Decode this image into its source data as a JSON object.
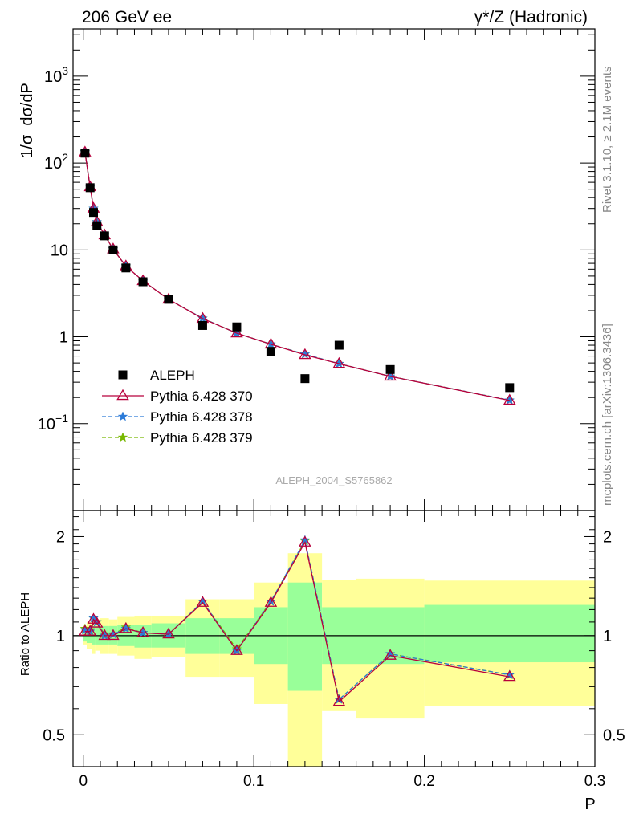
{
  "header": {
    "left_title": "206 GeV ee",
    "right_title": "γ*/Z (Hadronic)",
    "watermark": "ALEPH_2004_S5765862",
    "side_text_top": "Rivet 3.1.10, ≥ 2.1M events",
    "side_text_bottom": "mcplots.cern.ch [arXiv:1306.3436]"
  },
  "chart_data": [
    {
      "type": "scatter",
      "panel": "main",
      "ylabel": "1/σ  dσ/dP",
      "xlabel": "",
      "yscale": "log",
      "xlim": [
        -0.006,
        0.3
      ],
      "ylim": [
        0.01,
        3500
      ],
      "ytick_labels": [
        "10−1",
        "1",
        "10",
        "102",
        "103"
      ],
      "legend_placement": "lower-left",
      "series": [
        {
          "name": "ALEPH",
          "color": "#000000",
          "marker": "square",
          "x": [
            0.001,
            0.004,
            0.006,
            0.008,
            0.0125,
            0.0175,
            0.025,
            0.035,
            0.05,
            0.07,
            0.09,
            0.11,
            0.13,
            0.15,
            0.18,
            0.25
          ],
          "y": [
            130,
            52,
            27,
            19,
            14.5,
            10,
            6.2,
            4.3,
            2.7,
            1.35,
            1.3,
            0.68,
            0.33,
            0.8,
            0.42,
            0.26
          ]
        },
        {
          "name": "Pythia 6.428 370",
          "color": "#b8003c",
          "marker": "triangle",
          "x": [
            0.001,
            0.004,
            0.006,
            0.008,
            0.0125,
            0.0175,
            0.025,
            0.035,
            0.05,
            0.07,
            0.09,
            0.11,
            0.13,
            0.15,
            0.18,
            0.25
          ],
          "y": [
            133,
            53,
            30,
            21,
            14.8,
            10.2,
            6.5,
            4.4,
            2.7,
            1.62,
            1.1,
            0.82,
            0.62,
            0.49,
            0.35,
            0.185
          ]
        },
        {
          "name": "Pythia 6.428 378",
          "color": "#2c7bd8",
          "marker": "star",
          "x": [
            0.001,
            0.004,
            0.006,
            0.008,
            0.0125,
            0.0175,
            0.025,
            0.035,
            0.05,
            0.07,
            0.09,
            0.11,
            0.13,
            0.15,
            0.18,
            0.25
          ],
          "y": [
            134,
            53,
            30,
            21,
            14.8,
            10.2,
            6.5,
            4.4,
            2.7,
            1.63,
            1.1,
            0.82,
            0.63,
            0.49,
            0.35,
            0.186
          ]
        },
        {
          "name": "Pythia 6.428 379",
          "color": "#77b800",
          "marker": "star",
          "x": [
            0.001,
            0.004,
            0.006,
            0.008,
            0.0125,
            0.0175,
            0.025,
            0.035,
            0.05,
            0.07,
            0.09,
            0.11,
            0.13,
            0.15,
            0.18,
            0.25
          ],
          "y": [
            135,
            53,
            30,
            21,
            14.8,
            10.2,
            6.5,
            4.4,
            2.7,
            1.63,
            1.1,
            0.82,
            0.63,
            0.49,
            0.35,
            0.186
          ]
        }
      ]
    },
    {
      "type": "line",
      "panel": "ratio",
      "ylabel": "Ratio to ALEPH",
      "xlabel": "P",
      "yscale": "log",
      "xlim": [
        -0.006,
        0.3
      ],
      "ylim": [
        0.4,
        2.4
      ],
      "ytick_labels": [
        "0.5",
        "1",
        "2"
      ],
      "xtick_labels": [
        "0",
        "0.1",
        "0.2",
        "0.3"
      ],
      "reference_line": 1,
      "uncertainty_bins": [
        {
          "x0": 0.0,
          "x1": 0.002,
          "green": [
            0.96,
            1.04
          ],
          "yellow": [
            0.94,
            1.07
          ]
        },
        {
          "x0": 0.002,
          "x1": 0.005,
          "green": [
            0.95,
            1.06
          ],
          "yellow": [
            0.91,
            1.1
          ]
        },
        {
          "x0": 0.005,
          "x1": 0.007,
          "green": [
            0.94,
            1.07
          ],
          "yellow": [
            0.88,
            1.12
          ]
        },
        {
          "x0": 0.007,
          "x1": 0.01,
          "green": [
            0.94,
            1.07
          ],
          "yellow": [
            0.9,
            1.12
          ]
        },
        {
          "x0": 0.01,
          "x1": 0.015,
          "green": [
            0.94,
            1.07
          ],
          "yellow": [
            0.88,
            1.13
          ]
        },
        {
          "x0": 0.015,
          "x1": 0.02,
          "green": [
            0.94,
            1.07
          ],
          "yellow": [
            0.88,
            1.12
          ]
        },
        {
          "x0": 0.02,
          "x1": 0.03,
          "green": [
            0.93,
            1.08
          ],
          "yellow": [
            0.87,
            1.14
          ]
        },
        {
          "x0": 0.03,
          "x1": 0.04,
          "green": [
            0.92,
            1.08
          ],
          "yellow": [
            0.85,
            1.15
          ]
        },
        {
          "x0": 0.04,
          "x1": 0.06,
          "green": [
            0.92,
            1.09
          ],
          "yellow": [
            0.86,
            1.15
          ]
        },
        {
          "x0": 0.06,
          "x1": 0.08,
          "green": [
            0.88,
            1.13
          ],
          "yellow": [
            0.75,
            1.29
          ]
        },
        {
          "x0": 0.08,
          "x1": 0.1,
          "green": [
            0.88,
            1.13
          ],
          "yellow": [
            0.75,
            1.29
          ]
        },
        {
          "x0": 0.1,
          "x1": 0.12,
          "green": [
            0.82,
            1.22
          ],
          "yellow": [
            0.62,
            1.45
          ]
        },
        {
          "x0": 0.12,
          "x1": 0.14,
          "green": [
            0.68,
            1.45
          ],
          "yellow": [
            0.35,
            1.78
          ]
        },
        {
          "x0": 0.14,
          "x1": 0.16,
          "green": [
            0.82,
            1.22
          ],
          "yellow": [
            0.59,
            1.48
          ]
        },
        {
          "x0": 0.16,
          "x1": 0.2,
          "green": [
            0.82,
            1.22
          ],
          "yellow": [
            0.56,
            1.49
          ]
        },
        {
          "x0": 0.2,
          "x1": 0.3,
          "green": [
            0.83,
            1.24
          ],
          "yellow": [
            0.61,
            1.47
          ]
        }
      ],
      "series": [
        {
          "name": "Pythia 6.428 370",
          "color": "#b8003c",
          "marker": "triangle",
          "x": [
            0.001,
            0.004,
            0.006,
            0.008,
            0.0125,
            0.0175,
            0.025,
            0.035,
            0.05,
            0.07,
            0.09,
            0.11,
            0.13,
            0.15,
            0.18,
            0.25
          ],
          "y": [
            1.03,
            1.03,
            1.12,
            1.09,
            1.0,
            1.0,
            1.05,
            1.02,
            1.01,
            1.26,
            0.9,
            1.26,
            1.92,
            0.63,
            0.87,
            0.75
          ]
        },
        {
          "name": "Pythia 6.428 378",
          "color": "#2c7bd8",
          "marker": "star",
          "x": [
            0.001,
            0.004,
            0.006,
            0.008,
            0.0125,
            0.0175,
            0.025,
            0.035,
            0.05,
            0.07,
            0.09,
            0.11,
            0.13,
            0.15,
            0.18,
            0.25
          ],
          "y": [
            1.04,
            1.03,
            1.13,
            1.1,
            1.0,
            1.01,
            1.05,
            1.02,
            1.01,
            1.27,
            0.9,
            1.27,
            1.95,
            0.64,
            0.88,
            0.76
          ]
        },
        {
          "name": "Pythia 6.428 379",
          "color": "#77b800",
          "marker": "star",
          "x": [
            0.001,
            0.004,
            0.006,
            0.008,
            0.0125,
            0.0175,
            0.025,
            0.035,
            0.05,
            0.07,
            0.09,
            0.11,
            0.13,
            0.15,
            0.18,
            0.25
          ],
          "y": [
            1.05,
            1.04,
            1.13,
            1.1,
            1.01,
            1.01,
            1.06,
            1.02,
            1.01,
            1.27,
            0.91,
            1.27,
            1.94,
            0.64,
            0.88,
            0.76
          ]
        }
      ]
    }
  ]
}
